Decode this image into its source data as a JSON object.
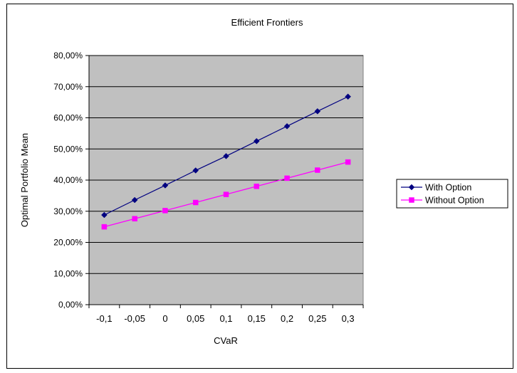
{
  "chart_data": {
    "type": "line",
    "title": "Efficient Frontiers",
    "xlabel": "CVaR",
    "ylabel": "Optimal Portfolio Mean",
    "x_tick_labels": [
      "-0,1",
      "-0,05",
      "0",
      "0,05",
      "0,1",
      "0,15",
      "0,2",
      "0,25",
      "0,3"
    ],
    "y_tick_labels": [
      "0,00%",
      "10,00%",
      "20,00%",
      "30,00%",
      "40,00%",
      "50,00%",
      "60,00%",
      "70,00%",
      "80,00%"
    ],
    "ylim": [
      0,
      80
    ],
    "grid": "horizontal",
    "plot_background": "#c0c0c0",
    "legend_position": "right",
    "series": [
      {
        "name": "With Option",
        "color": "#000080",
        "marker": "diamond",
        "values": [
          28.8,
          33.6,
          38.3,
          43.1,
          47.7,
          52.5,
          57.3,
          62.1,
          66.8
        ]
      },
      {
        "name": "Without Option",
        "color": "#ff00ff",
        "marker": "square",
        "values": [
          25.0,
          27.6,
          30.2,
          32.8,
          35.4,
          38.0,
          40.6,
          43.2,
          45.8
        ]
      }
    ]
  }
}
